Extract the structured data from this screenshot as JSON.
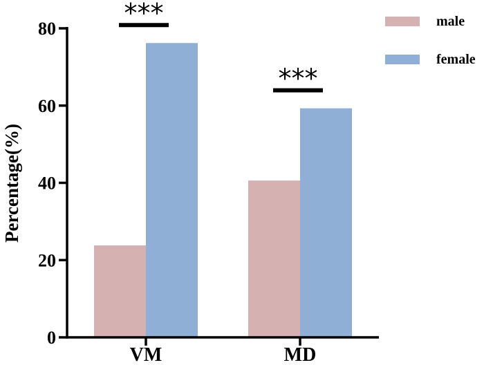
{
  "chart_data": {
    "type": "bar",
    "categories": [
      "VM",
      "MD"
    ],
    "series": [
      {
        "name": "male",
        "values": [
          23.8,
          40.6
        ],
        "color": "#d6b1b1"
      },
      {
        "name": "female",
        "values": [
          76.2,
          59.3
        ],
        "color": "#8fafd6"
      }
    ],
    "ylabel": "Percentage(%)",
    "xlabel": "",
    "ylim": [
      0,
      80
    ],
    "yticks": [
      0,
      20,
      40,
      60,
      80
    ],
    "legend_position": "top-right",
    "grid": false,
    "annotations": [
      {
        "category": "VM",
        "text": "***"
      },
      {
        "category": "MD",
        "text": "***"
      }
    ]
  }
}
